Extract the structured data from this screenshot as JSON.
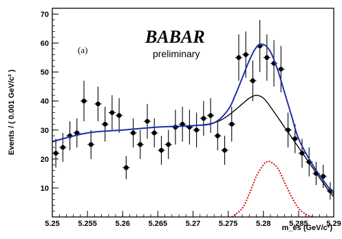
{
  "chart_data": {
    "type": "scatter",
    "xlabel": "m_es (GeV/c²)",
    "ylabel": "Events / ( 0.001 GeV/c² )",
    "xlim": [
      5.25,
      5.29
    ],
    "ylim": [
      0,
      72
    ],
    "xticks": [
      5.25,
      5.255,
      5.26,
      5.265,
      5.27,
      5.275,
      5.28,
      5.285,
      5.29
    ],
    "xtick_labels": [
      "5.25",
      "5.255",
      "5.26",
      "5.265",
      "5.27",
      "5.275",
      "5.28",
      "5.285",
      "5.29"
    ],
    "yticks": [
      10,
      20,
      30,
      40,
      50,
      60,
      70
    ],
    "ytick_labels": [
      "10",
      "20",
      "30",
      "40",
      "50",
      "60",
      "70"
    ],
    "annotations": {
      "panel": "(a)",
      "brand": "BABAR",
      "brand_sub": "preliminary"
    },
    "colors": {
      "total_fit": "#1f2fa8",
      "background_fit": "#000000",
      "signal_fit": "#dd0000",
      "points": "#000000"
    },
    "series": [
      {
        "kind": "data_points",
        "x": [
          5.2505,
          5.2515,
          5.2525,
          5.2535,
          5.2545,
          5.2555,
          5.2565,
          5.2575,
          5.2585,
          5.2595,
          5.2605,
          5.2615,
          5.2625,
          5.2635,
          5.2645,
          5.2655,
          5.2665,
          5.2675,
          5.2685,
          5.2695,
          5.2705,
          5.2715,
          5.2725,
          5.2735,
          5.2745,
          5.2755,
          5.2765,
          5.2775,
          5.2785,
          5.2795,
          5.2805,
          5.2815,
          5.2825,
          5.2835,
          5.2845,
          5.2855,
          5.2865,
          5.2875,
          5.2885,
          5.2895
        ],
        "y": [
          22,
          24,
          28,
          29,
          40,
          25,
          39,
          32,
          36,
          35,
          17,
          29,
          25,
          33,
          29,
          23,
          25,
          31,
          32,
          31,
          30,
          34,
          35,
          28,
          23,
          32,
          55,
          56,
          47,
          59,
          55,
          53,
          51,
          30,
          27,
          22,
          19,
          15,
          14,
          9
        ],
        "err": [
          5,
          5,
          5,
          5,
          7,
          5,
          6,
          6,
          6,
          6,
          4,
          5,
          5,
          6,
          5,
          5,
          5,
          6,
          6,
          6,
          6,
          6,
          6,
          5,
          5,
          6,
          8,
          8,
          7,
          9,
          8,
          8,
          8,
          6,
          5,
          5,
          5,
          4,
          4,
          3
        ]
      },
      {
        "kind": "background_fit",
        "x": [
          5.25,
          5.255,
          5.26,
          5.265,
          5.27,
          5.273,
          5.275,
          5.277,
          5.278,
          5.279,
          5.28,
          5.281,
          5.283,
          5.285,
          5.287,
          5.289,
          5.29
        ],
        "y": [
          26,
          29,
          30,
          31,
          31.5,
          32.5,
          35,
          39,
          41,
          42,
          41,
          38,
          31,
          24,
          17,
          10,
          7
        ]
      },
      {
        "kind": "total_fit",
        "x": [
          5.25,
          5.255,
          5.26,
          5.265,
          5.27,
          5.273,
          5.275,
          5.276,
          5.277,
          5.278,
          5.279,
          5.28,
          5.281,
          5.282,
          5.283,
          5.284,
          5.285,
          5.287,
          5.289,
          5.29
        ],
        "y": [
          26,
          29,
          30,
          31,
          31.5,
          32.5,
          37,
          42,
          48,
          54,
          58.5,
          59.5,
          57,
          51,
          43,
          35,
          27,
          18,
          11,
          8
        ]
      },
      {
        "kind": "signal_fit",
        "x": [
          5.2755,
          5.277,
          5.278,
          5.279,
          5.28,
          5.2805,
          5.281,
          5.282,
          5.283,
          5.284,
          5.285,
          5.286,
          5.287
        ],
        "y": [
          0,
          3,
          8,
          14,
          18,
          19,
          19,
          17,
          12,
          7,
          3,
          1,
          0
        ]
      }
    ]
  }
}
